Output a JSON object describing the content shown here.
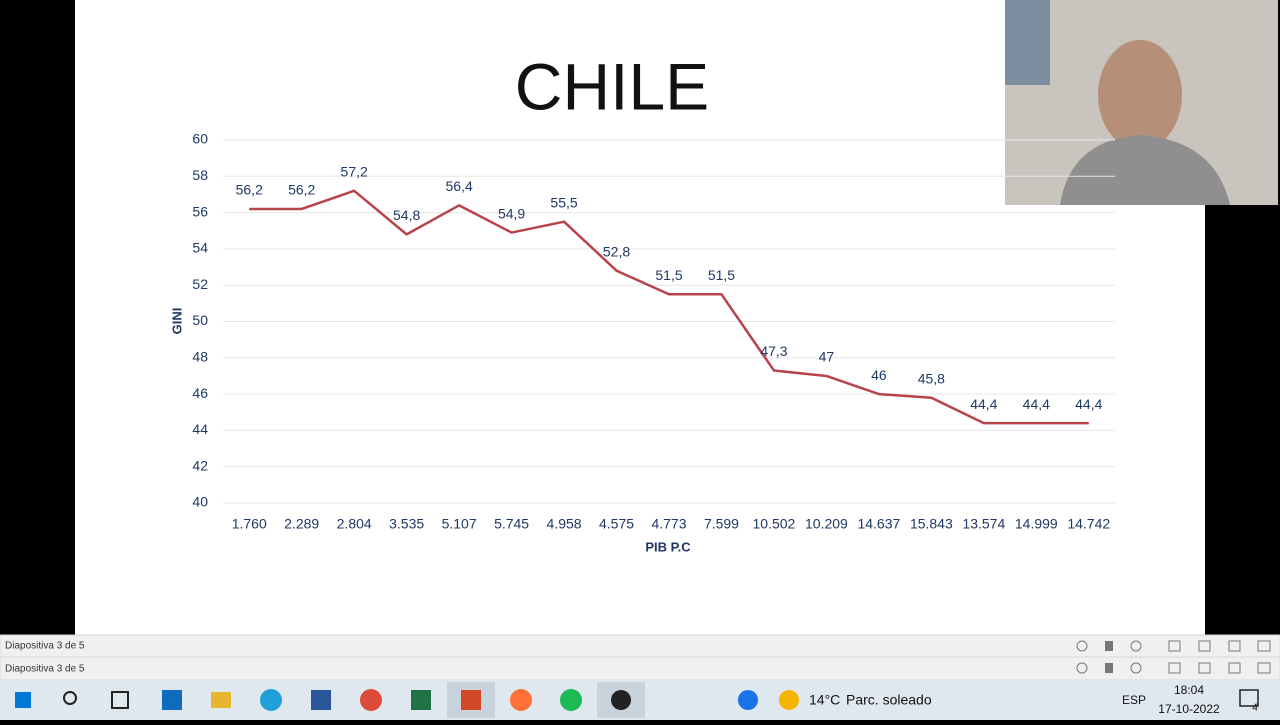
{
  "chart_data": {
    "type": "line",
    "title": "CHILE",
    "x_label": "PIB P.C",
    "y_label": "GINI",
    "categories": [
      "1.760",
      "2.289",
      "2.804",
      "3.535",
      "5.107",
      "5.745",
      "4.958",
      "4.575",
      "4.773",
      "7.599",
      "10.502",
      "10.209",
      "14.637",
      "15.843",
      "13.574",
      "14.999",
      "14.742"
    ],
    "values": [
      56.2,
      56.2,
      57.2,
      54.8,
      56.4,
      54.9,
      55.5,
      52.8,
      51.5,
      51.5,
      47.3,
      47,
      46,
      45.8,
      44.4,
      44.4,
      44.4
    ],
    "value_labels": [
      "56,2",
      "56,2",
      "57,2",
      "54,8",
      "56,4",
      "54,9",
      "55,5",
      "52,8",
      "51,5",
      "51,5",
      "47,3",
      "47",
      "46",
      "45,8",
      "44,4",
      "44,4",
      "44,4"
    ],
    "color": "#b8434b",
    "ylim": [
      40,
      60
    ],
    "yticks": [
      40,
      42,
      44,
      46,
      48,
      50,
      52,
      54,
      56,
      58,
      60
    ],
    "grid": true
  },
  "ui": {
    "status_bar_top": "Diapositiva 3 de 5",
    "status_bar_bottom": "Diapositiva 3 de 5",
    "taskbar": {
      "temperature": "14°C",
      "weather": "Parc. soleado",
      "language": "ESP",
      "time": "18:04",
      "date": "17-10-2022",
      "notifications": "4"
    }
  }
}
